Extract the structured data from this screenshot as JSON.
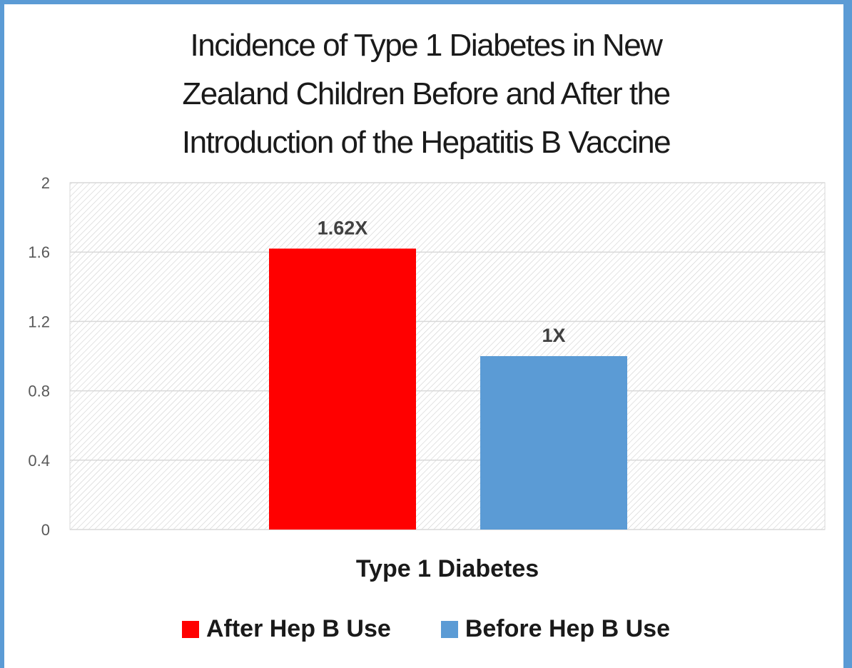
{
  "chart_data": {
    "type": "bar",
    "title_lines": [
      "Incidence of Type 1 Diabetes in New",
      "Zealand Children Before and After the",
      "Introduction of the Hepatitis B Vaccine"
    ],
    "xlabel": "Type 1 Diabetes",
    "ylabel": "",
    "categories": [
      "Type 1 Diabetes"
    ],
    "ylim": [
      0,
      2
    ],
    "yticks": [
      "0",
      "0.4",
      "0.8",
      "1.2",
      "1.6",
      "2"
    ],
    "grid": true,
    "legend_position": "bottom",
    "series": [
      {
        "name": "After Hep B Use",
        "values": [
          1.62
        ],
        "data_label": "1.62X",
        "color": "#ff0000"
      },
      {
        "name": "Before Hep B Use",
        "values": [
          1.0
        ],
        "data_label": "1X",
        "color": "#5b9bd5"
      }
    ]
  }
}
